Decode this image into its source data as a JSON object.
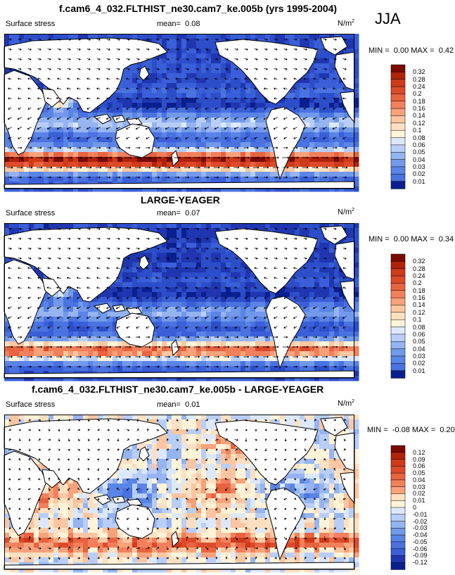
{
  "season": "JJA",
  "colors": {
    "positive": [
      "#fff3d8",
      "#fde0c2",
      "#fbc6a1",
      "#f7a27a",
      "#f2805c",
      "#e8633f",
      "#dc4a29",
      "#cf3a1a",
      "#b22209",
      "#7a0a00"
    ],
    "negative": [
      "#dce8fb",
      "#b8cef7",
      "#95b4f1",
      "#7299ea",
      "#5a84e6",
      "#4a73e0",
      "#3a5fd8",
      "#2d4ec9",
      "#1f36b0",
      "#0a1f8f"
    ],
    "land": "#ffffff",
    "coast": "#000000"
  },
  "chart_data": [
    {
      "type": "heatmap",
      "title": "f.cam6_4_032.FLTHIST_ne30.cam7_ke.005b (yrs 1995-2004)",
      "variable": "Surface stress",
      "mean_label": "mean=",
      "mean": "0.08",
      "units": "N/m",
      "units_sup": "2",
      "min_label": "MIN =",
      "min": "0.00",
      "max_label": "MAX =",
      "max": "0.42",
      "colorbar_levels": [
        "0.32",
        "0.28",
        "0.24",
        "0.2",
        "0.18",
        "0.16",
        "0.14",
        "0.12",
        "0.1",
        "0.08",
        "0.06",
        "0.05",
        "0.04",
        "0.03",
        "0.02",
        "0.01"
      ],
      "overlay": "wind stress vectors"
    },
    {
      "type": "heatmap",
      "title": "LARGE-YEAGER",
      "variable": "Surface stress",
      "mean_label": "mean=",
      "mean": "0.07",
      "units": "N/m",
      "units_sup": "2",
      "min_label": "MIN =",
      "min": "0.00",
      "max_label": "MAX =",
      "max": "0.34",
      "colorbar_levels": [
        "0.32",
        "0.28",
        "0.24",
        "0.2",
        "0.18",
        "0.16",
        "0.14",
        "0.12",
        "0.1",
        "0.08",
        "0.06",
        "0.05",
        "0.04",
        "0.03",
        "0.02",
        "0.01"
      ],
      "overlay": "wind stress vectors"
    },
    {
      "type": "heatmap",
      "title": "f.cam6_4_032.FLTHIST_ne30.cam7_ke.005b - LARGE-YEAGER",
      "variable": "Surface stress",
      "mean_label": "mean=",
      "mean": "0.01",
      "units": "N/m",
      "units_sup": "2",
      "min_label": "MIN =",
      "min": "-0.08",
      "max_label": "MAX =",
      "max": "0.20",
      "colorbar_levels": [
        "0.12",
        "0.09",
        "0.06",
        "0.05",
        "0.04",
        "0.03",
        "0.02",
        "0.01",
        "0",
        "-0.01",
        "-0.02",
        "-0.03",
        "-0.04",
        "-0.05",
        "-0.06",
        "-0.09",
        "-0.12"
      ],
      "overlay": "wind stress difference vectors"
    }
  ]
}
